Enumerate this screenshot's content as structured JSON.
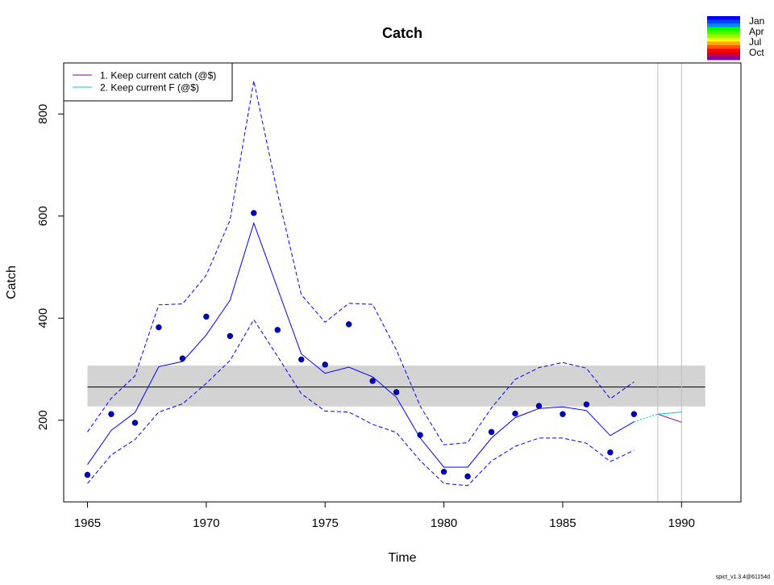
{
  "chart_data": {
    "type": "line",
    "title": "Catch",
    "xlabel": "Time",
    "ylabel": "Catch",
    "xlim": [
      1964,
      1992.5
    ],
    "ylim": [
      40,
      900
    ],
    "x_ticks": [
      1965,
      1970,
      1975,
      1980,
      1985,
      1990
    ],
    "y_ticks": [
      200,
      400,
      600,
      800
    ],
    "observed": {
      "x": [
        1965,
        1966,
        1967,
        1968,
        1969,
        1970,
        1971,
        1972,
        1973,
        1974,
        1975,
        1976,
        1977,
        1978,
        1979,
        1980,
        1981,
        1982,
        1983,
        1984,
        1985,
        1986,
        1987,
        1988
      ],
      "y": [
        93,
        212,
        195,
        382,
        321,
        403,
        365,
        606,
        377,
        319,
        309,
        388,
        277,
        255,
        171,
        99,
        90,
        177,
        213,
        228,
        212,
        231,
        137,
        212
      ]
    },
    "fitted": {
      "x": [
        1965,
        1966,
        1967,
        1968,
        1969,
        1970,
        1971,
        1972,
        1973,
        1974,
        1975,
        1976,
        1977,
        1978,
        1979,
        1980,
        1981,
        1982,
        1983,
        1984,
        1985,
        1986,
        1987,
        1988
      ],
      "y": [
        113,
        180,
        215,
        305,
        315,
        367,
        435,
        586,
        458,
        330,
        292,
        304,
        285,
        245,
        165,
        108,
        108,
        165,
        205,
        223,
        226,
        219,
        170,
        197
      ],
      "upper": [
        177,
        243,
        287,
        426,
        428,
        484,
        592,
        865,
        644,
        446,
        392,
        429,
        427,
        338,
        228,
        152,
        156,
        224,
        280,
        303,
        313,
        302,
        242,
        275
      ],
      "lower": [
        76,
        132,
        162,
        216,
        232,
        272,
        317,
        397,
        325,
        252,
        218,
        216,
        192,
        176,
        121,
        76,
        72,
        120,
        149,
        165,
        165,
        155,
        119,
        141
      ]
    },
    "msy_band": {
      "center": 265,
      "lower": 227,
      "upper": 307,
      "x_range": [
        1965,
        1991
      ]
    },
    "vertical_lines": [
      1989,
      1990
    ],
    "series": [
      {
        "name": "1. Keep current catch (@$)",
        "color": "#800080",
        "x": [
          1989,
          1990
        ],
        "y": [
          212,
          196
        ]
      },
      {
        "name": "2. Keep current F (@$)",
        "color": "#00cccc",
        "x": [
          1989,
          1990
        ],
        "y": [
          212,
          216
        ]
      }
    ],
    "projection_dotted": {
      "x": [
        1988,
        1989
      ],
      "y": [
        197,
        212
      ]
    },
    "legend": {
      "position": "top-left",
      "entries": [
        "1. Keep current catch (@$)",
        "2. Keep current F (@$)"
      ]
    },
    "season_legend": {
      "position": "top-right",
      "labels": [
        "Jan",
        "Apr",
        "Jul",
        "Oct"
      ],
      "colors": [
        "#0000ff",
        "#0044ff",
        "#0088ff",
        "#00ff00",
        "#44ff00",
        "#99ff00",
        "#ffff00",
        "#ffaa00",
        "#ff5500",
        "#ff0000",
        "#cc0033",
        "#8800aa"
      ]
    },
    "colors": {
      "main": "#0000ff",
      "band": "#d3d3d3",
      "hline": "#000000",
      "vline": "#bebebe",
      "point_fill": "#0000cd",
      "point_edge": "#000066"
    },
    "footer": "spict_v1.3.4@61154d"
  }
}
